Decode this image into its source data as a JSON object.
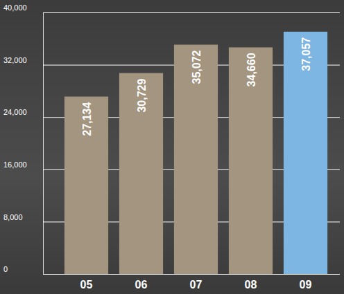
{
  "chart_data": {
    "type": "bar",
    "categories": [
      "05",
      "06",
      "07",
      "08",
      "09"
    ],
    "values": [
      27134,
      30729,
      35072,
      34660,
      37057
    ],
    "value_labels": [
      "27,134",
      "30,729",
      "35,072",
      "34,660",
      "37,057"
    ],
    "colors": [
      "#a39580",
      "#a39580",
      "#a39580",
      "#a39580",
      "#7db5e3"
    ],
    "ylim": [
      0,
      40000
    ],
    "yticks": [
      0,
      {
        "value": 8000,
        "label": "8,000"
      },
      {
        "value": 16000,
        "label": "16,000"
      },
      {
        "value": 24000,
        "label": "24,000"
      },
      {
        "value": 32000,
        "label": "32,000"
      },
      {
        "value": 40000,
        "label": "40,000"
      }
    ],
    "grid": true,
    "data_labels": true
  }
}
